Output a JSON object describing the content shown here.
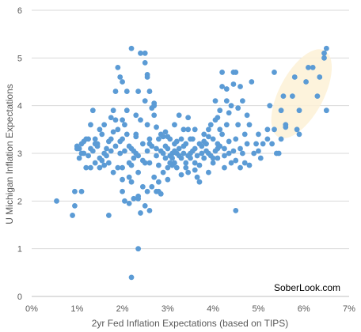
{
  "chart_data": {
    "type": "scatter",
    "title": "",
    "xlabel": "2yr Fed Inflation Expectations (based on TIPS)",
    "ylabel": "U Michigan Inflation Expectations",
    "xlim": [
      0,
      7
    ],
    "ylim": [
      0,
      6
    ],
    "x_tick_values": [
      0,
      1,
      2,
      3,
      4,
      5,
      6,
      7
    ],
    "x_tick_labels": [
      "0%",
      "1%",
      "2%",
      "3%",
      "4%",
      "5%",
      "6%",
      "7%"
    ],
    "y_tick_values": [
      0,
      1,
      2,
      3,
      4,
      5,
      6
    ],
    "y_tick_labels": [
      "0",
      "1",
      "2",
      "3",
      "4",
      "5",
      "6"
    ],
    "grid": "horizontal",
    "legend": "none",
    "colors": {
      "points": "#5b9bd5",
      "highlight": "#fdf1d6",
      "grid": "#d9d9d9"
    },
    "watermark": "SoberLook.com",
    "points": [
      [
        0.55,
        2.0
      ],
      [
        0.9,
        1.7
      ],
      [
        0.95,
        1.9
      ],
      [
        0.95,
        2.2
      ],
      [
        1.1,
        2.2
      ],
      [
        1.0,
        3.1
      ],
      [
        1.05,
        2.9
      ],
      [
        1.1,
        3.2
      ],
      [
        1.15,
        3.0
      ],
      [
        1.2,
        2.7
      ],
      [
        1.25,
        3.3
      ],
      [
        1.3,
        3.6
      ],
      [
        1.35,
        3.9
      ],
      [
        1.3,
        3.1
      ],
      [
        1.4,
        2.8
      ],
      [
        1.45,
        3.2
      ],
      [
        1.5,
        3.5
      ],
      [
        1.5,
        2.9
      ],
      [
        1.55,
        3.4
      ],
      [
        1.6,
        3.0
      ],
      [
        1.65,
        3.1
      ],
      [
        1.7,
        2.8
      ],
      [
        1.7,
        1.7
      ],
      [
        1.75,
        3.3
      ],
      [
        1.8,
        3.9
      ],
      [
        1.85,
        3.7
      ],
      [
        1.9,
        4.8
      ],
      [
        1.95,
        4.6
      ],
      [
        1.9,
        3.5
      ],
      [
        1.95,
        3.0
      ],
      [
        2.0,
        2.7
      ],
      [
        2.0,
        2.2
      ],
      [
        2.05,
        2.0
      ],
      [
        2.05,
        3.6
      ],
      [
        2.1,
        3.4
      ],
      [
        2.1,
        4.3
      ],
      [
        2.15,
        2.8
      ],
      [
        2.15,
        2.5
      ],
      [
        2.2,
        5.2
      ],
      [
        2.2,
        3.1
      ],
      [
        2.25,
        2.9
      ],
      [
        2.3,
        3.4
      ],
      [
        2.35,
        2.6
      ],
      [
        2.35,
        1.0
      ],
      [
        2.35,
        2.1
      ],
      [
        2.4,
        5.1
      ],
      [
        2.45,
        3.2
      ],
      [
        2.5,
        5.1
      ],
      [
        2.5,
        4.9
      ],
      [
        2.5,
        1.9
      ],
      [
        2.55,
        4.6
      ],
      [
        2.55,
        3.6
      ],
      [
        2.6,
        3.2
      ],
      [
        2.6,
        2.8
      ],
      [
        2.6,
        1.8
      ],
      [
        2.7,
        4.0
      ],
      [
        2.7,
        3.8
      ],
      [
        2.75,
        3.1
      ],
      [
        2.8,
        2.4
      ],
      [
        2.8,
        2.2
      ],
      [
        2.85,
        3.4
      ],
      [
        2.9,
        3.0
      ],
      [
        2.9,
        2.6
      ],
      [
        2.95,
        2.9
      ],
      [
        3.0,
        3.1
      ],
      [
        3.0,
        2.7
      ],
      [
        3.05,
        3.3
      ],
      [
        3.05,
        2.8
      ],
      [
        3.1,
        3.0
      ],
      [
        3.1,
        2.9
      ],
      [
        3.15,
        3.2
      ],
      [
        3.15,
        2.8
      ],
      [
        3.2,
        3.0
      ],
      [
        3.2,
        2.7
      ],
      [
        3.25,
        3.1
      ],
      [
        3.3,
        2.9
      ],
      [
        3.3,
        3.3
      ],
      [
        3.35,
        3.0
      ],
      [
        3.4,
        2.8
      ],
      [
        3.4,
        3.2
      ],
      [
        3.45,
        3.5
      ],
      [
        3.45,
        2.6
      ],
      [
        3.5,
        3.0
      ],
      [
        3.5,
        2.9
      ],
      [
        3.55,
        3.3
      ],
      [
        3.6,
        3.1
      ],
      [
        3.6,
        2.8
      ],
      [
        3.65,
        2.5
      ],
      [
        3.7,
        3.2
      ],
      [
        3.7,
        2.4
      ],
      [
        3.75,
        3.0
      ],
      [
        3.8,
        3.4
      ],
      [
        3.8,
        2.9
      ],
      [
        3.85,
        3.2
      ],
      [
        3.9,
        3.5
      ],
      [
        3.9,
        3.0
      ],
      [
        3.95,
        3.6
      ],
      [
        4.0,
        3.3
      ],
      [
        4.0,
        2.8
      ],
      [
        4.05,
        4.1
      ],
      [
        4.05,
        3.7
      ],
      [
        4.1,
        3.2
      ],
      [
        4.1,
        2.9
      ],
      [
        4.15,
        3.9
      ],
      [
        4.15,
        3.5
      ],
      [
        4.2,
        4.4
      ],
      [
        4.2,
        3.4
      ],
      [
        4.25,
        3.1
      ],
      [
        4.3,
        4.1
      ],
      [
        4.3,
        3.6
      ],
      [
        4.35,
        3.0
      ],
      [
        4.4,
        4.0
      ],
      [
        4.4,
        2.8
      ],
      [
        4.45,
        4.7
      ],
      [
        4.5,
        4.7
      ],
      [
        4.5,
        3.3
      ],
      [
        4.5,
        1.8
      ],
      [
        4.55,
        3.6
      ],
      [
        4.6,
        3.1
      ],
      [
        4.6,
        2.7
      ],
      [
        4.65,
        3.0
      ],
      [
        4.7,
        3.4
      ],
      [
        4.7,
        2.8
      ],
      [
        4.75,
        3.2
      ],
      [
        4.8,
        3.6
      ],
      [
        4.85,
        4.5
      ],
      [
        4.9,
        3.0
      ],
      [
        4.95,
        3.2
      ],
      [
        5.0,
        3.4
      ],
      [
        5.05,
        2.9
      ],
      [
        5.1,
        3.2
      ],
      [
        5.2,
        3.5
      ],
      [
        5.25,
        4.0
      ],
      [
        5.3,
        3.2
      ],
      [
        5.35,
        3.5
      ],
      [
        5.35,
        4.7
      ],
      [
        5.45,
        3.0
      ],
      [
        5.5,
        3.3
      ],
      [
        5.5,
        3.9
      ],
      [
        5.55,
        4.2
      ],
      [
        5.6,
        3.6
      ],
      [
        5.75,
        4.2
      ],
      [
        5.8,
        4.6
      ],
      [
        5.85,
        3.5
      ],
      [
        5.9,
        3.4
      ],
      [
        5.9,
        3.9
      ],
      [
        6.05,
        4.5
      ],
      [
        6.1,
        4.8
      ],
      [
        6.2,
        4.8
      ],
      [
        6.3,
        4.2
      ],
      [
        6.35,
        4.6
      ],
      [
        6.45,
        5.0
      ],
      [
        6.45,
        5.1
      ],
      [
        6.5,
        5.2
      ],
      [
        6.5,
        3.9
      ],
      [
        1.05,
        3.1
      ],
      [
        1.15,
        3.25
      ],
      [
        1.25,
        2.95
      ],
      [
        1.35,
        3.05
      ],
      [
        1.45,
        3.15
      ],
      [
        1.55,
        2.85
      ],
      [
        1.65,
        2.95
      ],
      [
        1.75,
        3.05
      ],
      [
        1.85,
        3.15
      ],
      [
        1.95,
        3.25
      ],
      [
        2.05,
        3.05
      ],
      [
        2.15,
        3.15
      ],
      [
        2.25,
        3.05
      ],
      [
        2.35,
        2.95
      ],
      [
        2.45,
        2.85
      ],
      [
        2.55,
        3.05
      ],
      [
        2.65,
        3.15
      ],
      [
        2.75,
        2.95
      ],
      [
        2.85,
        3.05
      ],
      [
        2.95,
        3.15
      ],
      [
        3.05,
        2.95
      ],
      [
        3.15,
        3.05
      ],
      [
        3.25,
        2.95
      ],
      [
        3.35,
        3.15
      ],
      [
        3.45,
        2.95
      ],
      [
        3.55,
        3.05
      ],
      [
        3.65,
        2.95
      ],
      [
        3.75,
        3.15
      ],
      [
        3.85,
        3.05
      ],
      [
        3.95,
        2.95
      ],
      [
        4.05,
        3.05
      ],
      [
        4.15,
        3.15
      ],
      [
        4.25,
        2.95
      ],
      [
        4.35,
        3.25
      ],
      [
        4.45,
        3.05
      ],
      [
        1.3,
        2.7
      ],
      [
        1.6,
        2.75
      ],
      [
        1.9,
        2.7
      ],
      [
        2.2,
        2.75
      ],
      [
        2.5,
        2.8
      ],
      [
        2.8,
        2.75
      ],
      [
        3.1,
        2.75
      ],
      [
        3.4,
        2.7
      ],
      [
        3.7,
        2.75
      ],
      [
        4.0,
        2.9
      ],
      [
        1.1,
        3.0
      ],
      [
        1.4,
        3.3
      ],
      [
        1.7,
        3.25
      ],
      [
        2.0,
        3.3
      ],
      [
        2.3,
        3.35
      ],
      [
        2.6,
        3.3
      ],
      [
        2.9,
        3.35
      ],
      [
        3.2,
        3.25
      ],
      [
        3.5,
        3.3
      ],
      [
        3.8,
        3.25
      ],
      [
        2.45,
        2.3
      ],
      [
        2.55,
        2.2
      ],
      [
        2.65,
        2.3
      ],
      [
        2.85,
        2.15
      ],
      [
        2.0,
        2.45
      ],
      [
        2.2,
        2.4
      ],
      [
        1.8,
        2.6
      ],
      [
        1.5,
        2.7
      ],
      [
        2.75,
        3.55
      ],
      [
        2.95,
        3.45
      ],
      [
        3.15,
        3.6
      ],
      [
        3.35,
        3.5
      ],
      [
        4.55,
        3.95
      ],
      [
        4.65,
        4.1
      ],
      [
        4.75,
        3.8
      ],
      [
        4.2,
        4.7
      ],
      [
        4.3,
        4.35
      ],
      [
        4.45,
        4.45
      ],
      [
        4.6,
        4.4
      ],
      [
        2.3,
        3.8
      ],
      [
        2.4,
        3.7
      ],
      [
        2.6,
        4.3
      ],
      [
        2.5,
        4.1
      ],
      [
        2.1,
        3.9
      ],
      [
        2.0,
        3.7
      ],
      [
        1.4,
        3.2
      ],
      [
        1.2,
        3.3
      ],
      [
        1.6,
        3.6
      ],
      [
        1.8,
        3.45
      ],
      [
        2.7,
        2.5
      ],
      [
        3.0,
        2.45
      ],
      [
        3.3,
        2.55
      ],
      [
        3.6,
        2.65
      ],
      [
        3.9,
        2.6
      ],
      [
        4.25,
        2.7
      ],
      [
        4.5,
        2.85
      ],
      [
        4.8,
        2.75
      ],
      [
        5.0,
        3.05
      ],
      [
        5.2,
        3.3
      ],
      [
        5.4,
        3.0
      ],
      [
        5.6,
        3.55
      ],
      [
        3.45,
        3.75
      ],
      [
        3.25,
        3.8
      ],
      [
        4.1,
        3.75
      ],
      [
        4.35,
        3.85
      ],
      [
        2.35,
        2.05
      ],
      [
        1.0,
        3.15
      ],
      [
        2.15,
        1.95
      ],
      [
        2.25,
        2.05
      ],
      [
        2.4,
        1.75
      ],
      [
        2.35,
        4.3
      ],
      [
        2.7,
        4.05
      ],
      [
        2.65,
        3.95
      ],
      [
        2.8,
        3.3
      ],
      [
        3.0,
        3.35
      ],
      [
        2.75,
        2.2
      ],
      [
        2.55,
        4.65
      ],
      [
        1.85,
        4.3
      ],
      [
        2.0,
        4.5
      ],
      [
        1.75,
        3.75
      ],
      [
        2.2,
        0.4
      ],
      [
        2.3,
        3.0
      ],
      [
        4.1,
        3.1
      ],
      [
        3.6,
        3.5
      ],
      [
        3.9,
        3.35
      ]
    ]
  }
}
